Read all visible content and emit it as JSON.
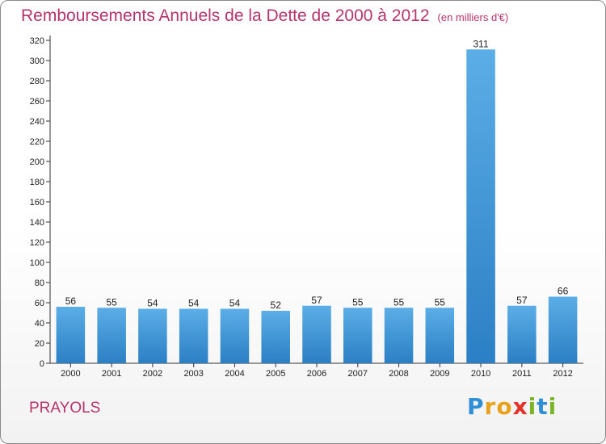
{
  "header": {
    "title": "Remboursements Annuels de la Dette de 2000 à 2012",
    "unit": "(en milliers d'€)"
  },
  "footer": {
    "commune": "PRAYOLS",
    "logo_letters": [
      "P",
      "r",
      "o",
      "x",
      "i",
      "t",
      "i"
    ],
    "logo_colors": [
      "#2f8fd6",
      "#e8a21c",
      "#e8a21c",
      "#e6312b",
      "#7ab527",
      "#2f8fd6",
      "#7ab527"
    ]
  },
  "chart_data": {
    "type": "bar",
    "categories": [
      "2000",
      "2001",
      "2002",
      "2003",
      "2004",
      "2005",
      "2006",
      "2007",
      "2008",
      "2009",
      "2010",
      "2011",
      "2012"
    ],
    "values": [
      56,
      55,
      54,
      54,
      54,
      52,
      57,
      55,
      55,
      55,
      311,
      57,
      66
    ],
    "value_labels": [
      "56",
      "55",
      "54",
      "54",
      "54",
      "52",
      "57",
      "55",
      "55",
      "55",
      "311",
      "57",
      "66"
    ],
    "yticks": [
      0,
      20,
      40,
      60,
      80,
      100,
      120,
      140,
      160,
      180,
      200,
      220,
      240,
      260,
      280,
      300,
      320
    ],
    "ylim": [
      0,
      320
    ],
    "grid": false,
    "bar_color_top": "#5baee6",
    "bar_color_bottom": "#2b7fc4"
  }
}
